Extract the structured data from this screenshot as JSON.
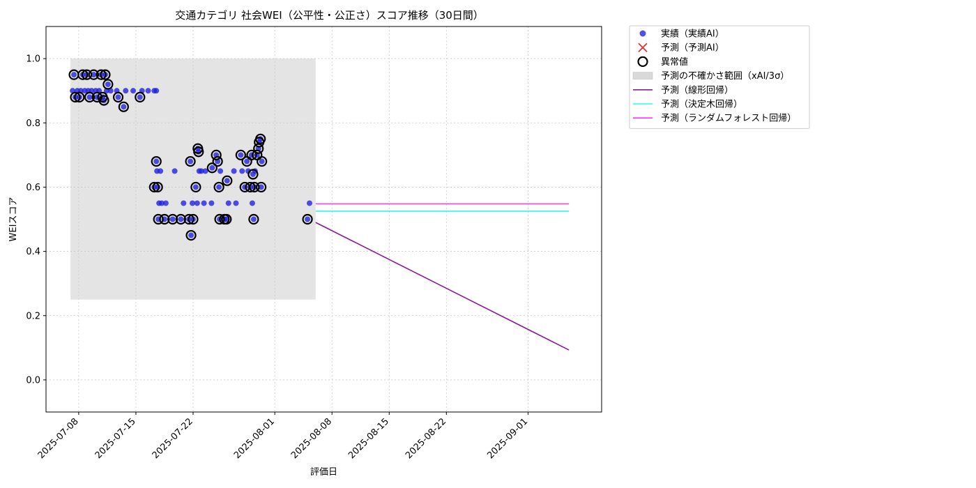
{
  "chart_data": {
    "type": "scatter",
    "title": "交通カテゴリ 社会WEI（公平性・公正さ）スコア推移（30日間）",
    "xlabel": "評価日",
    "ylabel": "WEIスコア",
    "xlim": [
      "2025-07-04",
      "2025-09-10"
    ],
    "ylim": [
      -0.1,
      1.1
    ],
    "grid": true,
    "legend_position": "outside-top-right",
    "x_ticks": [
      "2025-07-08",
      "2025-07-15",
      "2025-07-22",
      "2025-08-01",
      "2025-08-08",
      "2025-08-15",
      "2025-08-22",
      "2025-09-01"
    ],
    "y_ticks": [
      0.0,
      0.2,
      0.4,
      0.6,
      0.8,
      1.0
    ],
    "y_tick_labels": [
      "0.0",
      "0.2",
      "0.4",
      "0.6",
      "0.8",
      "1.0"
    ],
    "legend": [
      {
        "label": "実績（実績AI）",
        "kind": "dot",
        "color": "#1f1fe0"
      },
      {
        "label": "予測（予測AI）",
        "kind": "cross",
        "color": "#e03030"
      },
      {
        "label": "異常値",
        "kind": "ring",
        "color": "#000000"
      },
      {
        "label": "予測の不確かさ範囲（xAI/3σ）",
        "kind": "band",
        "color": "#d9d9d9"
      },
      {
        "label": "予測（線形回帰）",
        "kind": "line",
        "color": "#8b1a9b"
      },
      {
        "label": "予測（決定木回帰）",
        "kind": "line",
        "color": "#2ef5f5"
      },
      {
        "label": "予測（ランダムフォレスト回帰）",
        "kind": "line",
        "color": "#ff33ff"
      }
    ],
    "uncertainty_band": {
      "x_start": "2025-07-07",
      "x_end": "2025-08-06",
      "y_low": 0.25,
      "y_high": 1.0
    },
    "series": [
      {
        "name": "実績（実績AI）",
        "type": "scatter",
        "color": "#1f1fe0",
        "points": [
          [
            "2025-07-07 06:00",
            0.9
          ],
          [
            "2025-07-07 10:00",
            0.95
          ],
          [
            "2025-07-07 14:00",
            0.88
          ],
          [
            "2025-07-07 20:00",
            0.9
          ],
          [
            "2025-07-08 02:00",
            0.88
          ],
          [
            "2025-07-08 06:00",
            0.9
          ],
          [
            "2025-07-08 12:00",
            0.95
          ],
          [
            "2025-07-08 18:00",
            0.9
          ],
          [
            "2025-07-09 00:00",
            0.95
          ],
          [
            "2025-07-09 04:00",
            0.9
          ],
          [
            "2025-07-09 08:00",
            0.88
          ],
          [
            "2025-07-09 14:00",
            0.9
          ],
          [
            "2025-07-09 20:00",
            0.95
          ],
          [
            "2025-07-10 02:00",
            0.9
          ],
          [
            "2025-07-10 06:00",
            0.88
          ],
          [
            "2025-07-10 12:00",
            0.9
          ],
          [
            "2025-07-10 18:00",
            0.95
          ],
          [
            "2025-07-10 22:00",
            0.88
          ],
          [
            "2025-07-11 02:00",
            0.87
          ],
          [
            "2025-07-11 06:00",
            0.95
          ],
          [
            "2025-07-11 10:00",
            0.9
          ],
          [
            "2025-07-11 14:00",
            0.92
          ],
          [
            "2025-07-11 22:00",
            0.9
          ],
          [
            "2025-07-12 16:00",
            0.9
          ],
          [
            "2025-07-12 20:00",
            0.88
          ],
          [
            "2025-07-13 12:00",
            0.85
          ],
          [
            "2025-07-13 18:00",
            0.9
          ],
          [
            "2025-07-14 16:00",
            0.9
          ],
          [
            "2025-07-15 12:00",
            0.88
          ],
          [
            "2025-07-15 18:00",
            0.9
          ],
          [
            "2025-07-16 12:00",
            0.9
          ],
          [
            "2025-07-17 06:00",
            0.9
          ],
          [
            "2025-07-17 12:00",
            0.9
          ],
          [
            "2025-07-17 06:00",
            0.6
          ],
          [
            "2025-07-17 12:00",
            0.68
          ],
          [
            "2025-07-17 14:00",
            0.65
          ],
          [
            "2025-07-17 16:00",
            0.6
          ],
          [
            "2025-07-17 18:00",
            0.5
          ],
          [
            "2025-07-17 20:00",
            0.55
          ],
          [
            "2025-07-18 00:00",
            0.65
          ],
          [
            "2025-07-18 04:00",
            0.55
          ],
          [
            "2025-07-18 12:00",
            0.5
          ],
          [
            "2025-07-18 16:00",
            0.55
          ],
          [
            "2025-07-19 12:00",
            0.5
          ],
          [
            "2025-07-19 18:00",
            0.65
          ],
          [
            "2025-07-20 12:00",
            0.5
          ],
          [
            "2025-07-20 20:00",
            0.55
          ],
          [
            "2025-07-21 12:00",
            0.5
          ],
          [
            "2025-07-21 16:00",
            0.68
          ],
          [
            "2025-07-21 18:00",
            0.45
          ],
          [
            "2025-07-21 22:00",
            0.55
          ],
          [
            "2025-07-22 00:00",
            0.5
          ],
          [
            "2025-07-22 08:00",
            0.6
          ],
          [
            "2025-07-22 12:00",
            0.55
          ],
          [
            "2025-07-22 14:00",
            0.72
          ],
          [
            "2025-07-22 16:00",
            0.71
          ],
          [
            "2025-07-22 18:00",
            0.65
          ],
          [
            "2025-07-23 00:00",
            0.65
          ],
          [
            "2025-07-23 08:00",
            0.55
          ],
          [
            "2025-07-23 12:00",
            0.65
          ],
          [
            "2025-07-24 06:00",
            0.55
          ],
          [
            "2025-07-24 08:00",
            0.66
          ],
          [
            "2025-07-24 20:00",
            0.7
          ],
          [
            "2025-07-25 00:00",
            0.68
          ],
          [
            "2025-07-25 04:00",
            0.6
          ],
          [
            "2025-07-25 06:00",
            0.5
          ],
          [
            "2025-07-25 08:00",
            0.65
          ],
          [
            "2025-07-25 20:00",
            0.5
          ],
          [
            "2025-07-26 02:00",
            0.5
          ],
          [
            "2025-07-26 04:00",
            0.62
          ],
          [
            "2025-07-26 08:00",
            0.55
          ],
          [
            "2025-07-27 00:00",
            0.65
          ],
          [
            "2025-07-27 06:00",
            0.55
          ],
          [
            "2025-07-27 20:00",
            0.7
          ],
          [
            "2025-07-28 00:00",
            0.65
          ],
          [
            "2025-07-28 08:00",
            0.6
          ],
          [
            "2025-07-28 14:00",
            0.68
          ],
          [
            "2025-07-28 18:00",
            0.65
          ],
          [
            "2025-07-29 00:00",
            0.6
          ],
          [
            "2025-07-29 04:00",
            0.7
          ],
          [
            "2025-07-29 06:00",
            0.55
          ],
          [
            "2025-07-29 08:00",
            0.64
          ],
          [
            "2025-07-29 10:00",
            0.5
          ],
          [
            "2025-07-29 12:00",
            0.6
          ],
          [
            "2025-07-29 14:00",
            0.65
          ],
          [
            "2025-07-29 20:00",
            0.7
          ],
          [
            "2025-07-30 00:00",
            0.72
          ],
          [
            "2025-07-30 02:00",
            0.74
          ],
          [
            "2025-07-30 06:00",
            0.75
          ],
          [
            "2025-07-30 08:00",
            0.6
          ],
          [
            "2025-07-30 10:00",
            0.68
          ],
          [
            "2025-08-05 00:00",
            0.5
          ],
          [
            "2025-08-05 06:00",
            0.55
          ]
        ]
      },
      {
        "name": "異常値",
        "type": "ring",
        "color": "#000000",
        "points": [
          [
            "2025-07-07 10:00",
            0.95
          ],
          [
            "2025-07-07 14:00",
            0.88
          ],
          [
            "2025-07-08 02:00",
            0.88
          ],
          [
            "2025-07-08 12:00",
            0.95
          ],
          [
            "2025-07-09 00:00",
            0.95
          ],
          [
            "2025-07-09 08:00",
            0.88
          ],
          [
            "2025-07-09 20:00",
            0.95
          ],
          [
            "2025-07-10 06:00",
            0.88
          ],
          [
            "2025-07-10 18:00",
            0.95
          ],
          [
            "2025-07-10 22:00",
            0.88
          ],
          [
            "2025-07-11 02:00",
            0.87
          ],
          [
            "2025-07-11 06:00",
            0.95
          ],
          [
            "2025-07-11 14:00",
            0.92
          ],
          [
            "2025-07-12 20:00",
            0.88
          ],
          [
            "2025-07-13 12:00",
            0.85
          ],
          [
            "2025-07-15 12:00",
            0.88
          ],
          [
            "2025-07-17 06:00",
            0.6
          ],
          [
            "2025-07-17 12:00",
            0.68
          ],
          [
            "2025-07-17 16:00",
            0.6
          ],
          [
            "2025-07-17 18:00",
            0.5
          ],
          [
            "2025-07-18 12:00",
            0.5
          ],
          [
            "2025-07-19 12:00",
            0.5
          ],
          [
            "2025-07-20 12:00",
            0.5
          ],
          [
            "2025-07-21 12:00",
            0.5
          ],
          [
            "2025-07-21 16:00",
            0.68
          ],
          [
            "2025-07-21 18:00",
            0.45
          ],
          [
            "2025-07-22 00:00",
            0.5
          ],
          [
            "2025-07-22 08:00",
            0.6
          ],
          [
            "2025-07-22 14:00",
            0.72
          ],
          [
            "2025-07-22 16:00",
            0.71
          ],
          [
            "2025-07-24 08:00",
            0.66
          ],
          [
            "2025-07-24 20:00",
            0.7
          ],
          [
            "2025-07-25 00:00",
            0.68
          ],
          [
            "2025-07-25 04:00",
            0.6
          ],
          [
            "2025-07-25 06:00",
            0.5
          ],
          [
            "2025-07-25 20:00",
            0.5
          ],
          [
            "2025-07-26 02:00",
            0.5
          ],
          [
            "2025-07-26 04:00",
            0.62
          ],
          [
            "2025-07-27 20:00",
            0.7
          ],
          [
            "2025-07-28 08:00",
            0.6
          ],
          [
            "2025-07-28 14:00",
            0.68
          ],
          [
            "2025-07-29 00:00",
            0.6
          ],
          [
            "2025-07-29 04:00",
            0.7
          ],
          [
            "2025-07-29 08:00",
            0.64
          ],
          [
            "2025-07-29 10:00",
            0.5
          ],
          [
            "2025-07-29 12:00",
            0.6
          ],
          [
            "2025-07-29 20:00",
            0.7
          ],
          [
            "2025-07-30 00:00",
            0.72
          ],
          [
            "2025-07-30 02:00",
            0.74
          ],
          [
            "2025-07-30 06:00",
            0.75
          ],
          [
            "2025-07-30 08:00",
            0.6
          ],
          [
            "2025-07-30 10:00",
            0.68
          ],
          [
            "2025-08-05 00:00",
            0.5
          ]
        ]
      },
      {
        "name": "予測（線形回帰）",
        "type": "line",
        "color": "#8b1a9b",
        "points": [
          [
            "2025-08-06",
            0.49
          ],
          [
            "2025-09-06",
            0.093
          ]
        ]
      },
      {
        "name": "予測（決定木回帰）",
        "type": "line",
        "color": "#2ef5f5",
        "points": [
          [
            "2025-08-06",
            0.525
          ],
          [
            "2025-09-06",
            0.525
          ]
        ]
      },
      {
        "name": "予測（ランダムフォレスト回帰）",
        "type": "line",
        "color": "#ff33ff",
        "points": [
          [
            "2025-08-06",
            0.548
          ],
          [
            "2025-09-06",
            0.548
          ]
        ]
      }
    ]
  }
}
